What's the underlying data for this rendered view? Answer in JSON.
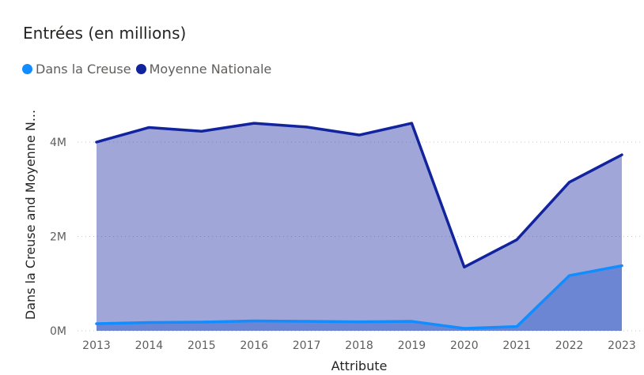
{
  "chart_data": {
    "type": "area",
    "title": "Entrées (en millions)",
    "xlabel": "Attribute",
    "ylabel": "Dans la Creuse and Moyenne N...",
    "categories": [
      "2013",
      "2014",
      "2015",
      "2016",
      "2017",
      "2018",
      "2019",
      "2020",
      "2021",
      "2022",
      "2023"
    ],
    "ylim": [
      0,
      4800000
    ],
    "yticks": [
      {
        "value": 0,
        "label": "0M"
      },
      {
        "value": 2000000,
        "label": "2M"
      },
      {
        "value": 4000000,
        "label": "4M"
      }
    ],
    "grid": true,
    "legend_position": "top-left",
    "series": [
      {
        "name": "Dans la Creuse",
        "color": "#118dff",
        "values": [
          150000,
          175000,
          185000,
          210000,
          200000,
          190000,
          200000,
          50000,
          90000,
          1170000,
          1380000
        ]
      },
      {
        "name": "Moyenne Nationale",
        "color": "#12239e",
        "values": [
          4000000,
          4310000,
          4230000,
          4400000,
          4320000,
          4150000,
          4400000,
          1350000,
          1930000,
          3150000,
          3730000
        ]
      }
    ]
  }
}
